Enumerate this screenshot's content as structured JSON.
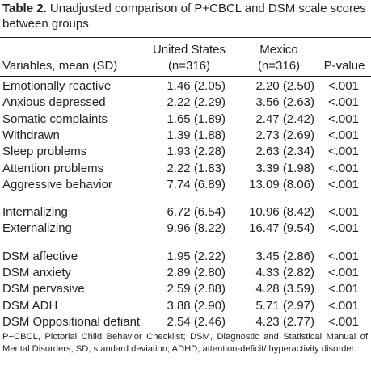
{
  "table": {
    "label": "Table 2.",
    "title": " Unadjusted comparison of P+CBCL and DSM scale scores between groups",
    "headers": {
      "variable": "Variables, mean (SD)",
      "us_line1": "United States",
      "us_line2": "(n=316)",
      "mx_line1": "Mexico",
      "mx_line2": "(n=316)",
      "pvalue": "P-value"
    },
    "groups": [
      {
        "rows": [
          {
            "variable": "Emotionally reactive",
            "us": "1.46 (2.05)",
            "mx": "2.20 (2.50)",
            "p": "<.001"
          },
          {
            "variable": "Anxious depressed",
            "us": "2.22 (2.29)",
            "mx": "3.56 (2.63)",
            "p": "<.001"
          },
          {
            "variable": "Somatic complaints",
            "us": "1.65 (1.89)",
            "mx": "2.47 (2.42)",
            "p": "<.001"
          },
          {
            "variable": "Withdrawn",
            "us": "1.39 (1.88)",
            "mx": "2.73 (2.69)",
            "p": "<.001"
          },
          {
            "variable": "Sleep problems",
            "us": "1.93 (2.28)",
            "mx": "2.63 (2.34)",
            "p": "<.001"
          },
          {
            "variable": "Attention problems",
            "us": "2.22 (1.83)",
            "mx": "3.39 (1.98)",
            "p": "<.001"
          },
          {
            "variable": "Aggressive behavior",
            "us": "7.74 (6.89)",
            "mx": "13.09 (8.06)",
            "p": "<.001"
          }
        ]
      },
      {
        "rows": [
          {
            "variable": "Internalizing",
            "us": "6.72 (6.54)",
            "mx": "10.96 (8.42)",
            "p": "<.001"
          },
          {
            "variable": "Externalizing",
            "us": "9.96 (8.22)",
            "mx": "16.47 (9.54)",
            "p": "<.001"
          }
        ]
      },
      {
        "rows": [
          {
            "variable": "DSM affective",
            "us": "1.95 (2.22)",
            "mx": "3.45 (2.86)",
            "p": "<.001"
          },
          {
            "variable": "DSM anxiety",
            "us": "2.89 (2.80)",
            "mx": "4.33 (2.82)",
            "p": "<.001"
          },
          {
            "variable": "DSM pervasive",
            "us": "2.59 (2.88)",
            "mx": "4.28 (3.59)",
            "p": "<.001"
          },
          {
            "variable": "DSM ADH",
            "us": "3.88 (2.90)",
            "mx": "5.71 (2.97)",
            "p": "<.001"
          },
          {
            "variable": "DSM Oppositional defiant",
            "us": "2.54 (2.46)",
            "mx": "4.23 (2.77)",
            "p": "<.001"
          }
        ]
      }
    ],
    "footnote": "P+CBCL, Pictorial Child Behavior Checklist; DSM, Diagnostic and Statistical Manual of Mental Disorders; SD, standard deviation; ADHD, attention-deficit/ hyperactivity disorder."
  }
}
